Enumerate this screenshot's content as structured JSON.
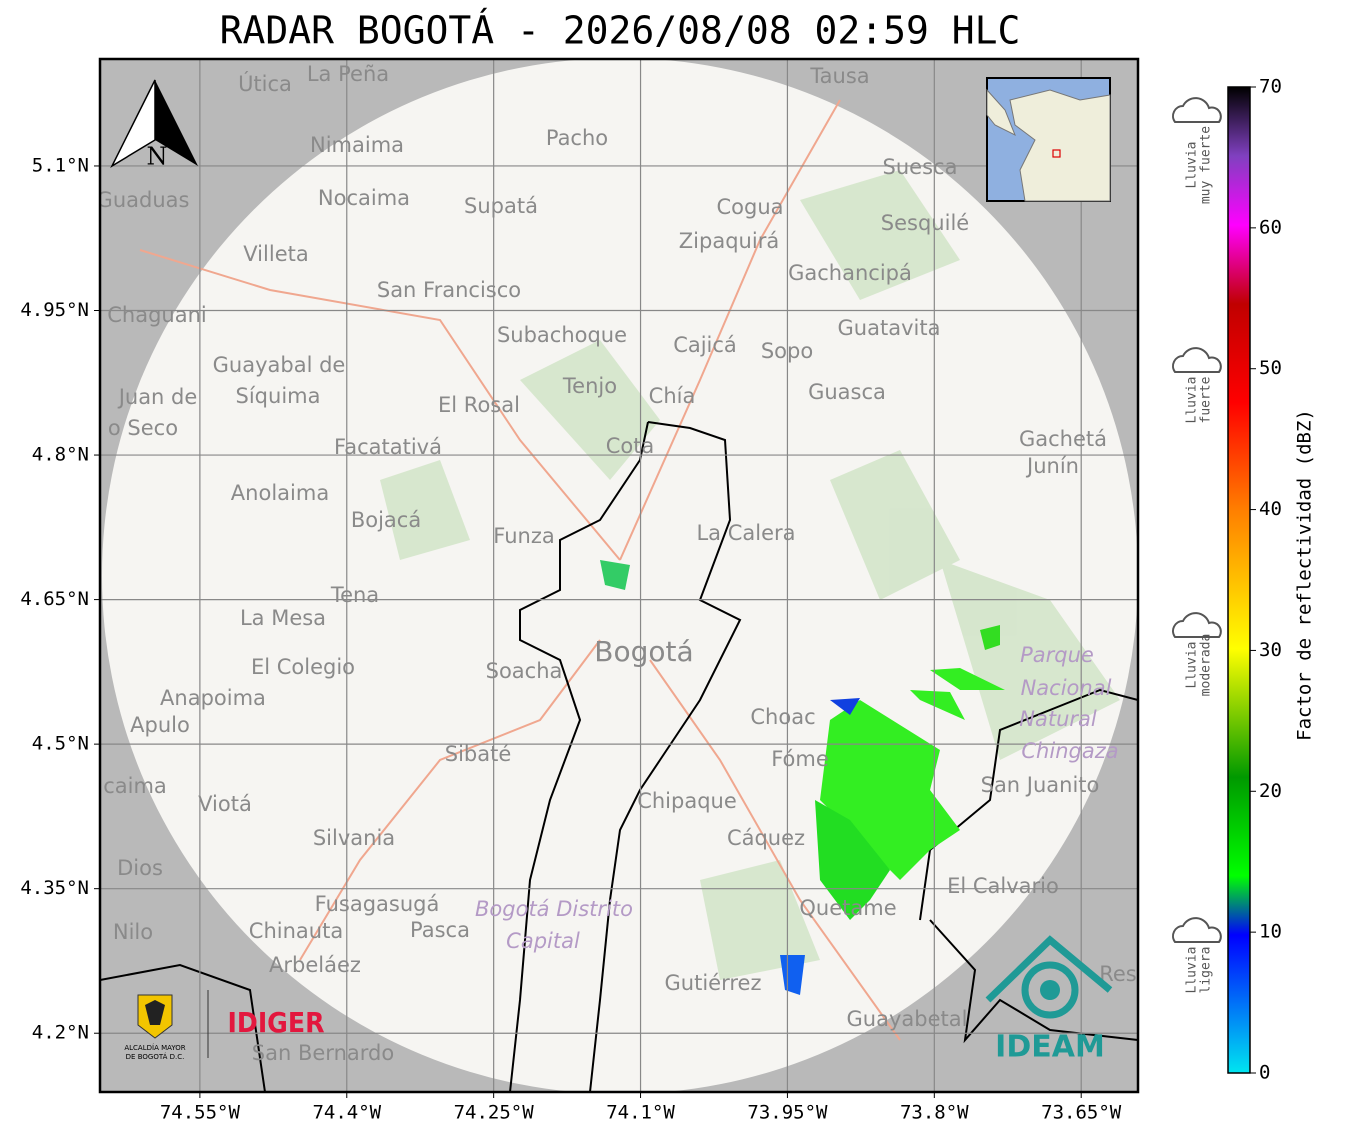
{
  "title": "RADAR BOGOTÁ - 2026/08/08 02:59 HLC",
  "map": {
    "lonlim": [
      -74.652,
      -73.592
    ],
    "latlim": [
      4.139,
      5.211
    ],
    "lon_ticks": [
      {
        "value": -74.55,
        "label": "74.55°W"
      },
      {
        "value": -74.4,
        "label": "74.4°W"
      },
      {
        "value": -74.25,
        "label": "74.25°W"
      },
      {
        "value": -74.1,
        "label": "74.1°W"
      },
      {
        "value": -73.95,
        "label": "73.95°W"
      },
      {
        "value": -73.8,
        "label": "73.8°W"
      },
      {
        "value": -73.65,
        "label": "73.65°W"
      }
    ],
    "lat_ticks": [
      {
        "value": 5.1,
        "label": "5.1°N"
      },
      {
        "value": 4.95,
        "label": "4.95°N"
      },
      {
        "value": 4.8,
        "label": "4.8°N"
      },
      {
        "value": 4.65,
        "label": "4.65°N"
      },
      {
        "value": 4.5,
        "label": "4.5°N"
      },
      {
        "value": 4.35,
        "label": "4.35°N"
      },
      {
        "value": 4.2,
        "label": "4.2°N"
      }
    ],
    "north": "N",
    "places": [
      "La Peña",
      "Útica",
      "Tausa",
      "Nimaima",
      "Pacho",
      "Suesca",
      "Guaduas",
      "Nocaima",
      "Supatá",
      "Cogua",
      "Sesquilé",
      "Zipaquirá",
      "Villeta",
      "Gachancipá",
      "San Francisco",
      "Chaguani",
      "Guatavita",
      "Subachoque",
      "Cajicá",
      "Sopo",
      "Guayabal de",
      "Síquima",
      "Tenjo",
      "Guasca",
      "Juan de",
      "El Rosal",
      "Chía",
      "o Seco",
      "Gachetá",
      "Junín",
      "Facatativá",
      "Cota",
      "Anolaima",
      "Bojacá",
      "Funza",
      "La Calera",
      "Tena",
      "La Mesa",
      "Bogotá",
      "Parque",
      "El Colegio",
      "Soacha",
      "Nacional",
      "Anapoima",
      "Apulo",
      "Natural",
      "Choac",
      "Chingaza",
      "Sibaté",
      "Fóme",
      "San Juanito",
      "caima",
      "Viotá",
      "Chipaque",
      "Cáquez",
      "Silvania",
      "Dios",
      "El Calvario",
      "Fusagasugá",
      "Bogotá Distrito",
      "Quetame",
      "Nilo",
      "Chinauta",
      "Pasca",
      "Capital",
      "Arbeláez",
      "Res",
      "Gutiérrez",
      "Guayabetal",
      "San Bernardo"
    ],
    "logos": {
      "alcaldia": [
        "ALCALDÍA MAYOR",
        "DE BOGOTÁ D.C."
      ],
      "idiger": "IDIGER",
      "ideam": "IDEAM"
    }
  },
  "colorbar": {
    "label": "Factor de reflectividad (dBZ)",
    "lim": [
      0,
      70
    ],
    "ticks": [
      0,
      10,
      20,
      30,
      40,
      50,
      60,
      70
    ]
  },
  "legend": [
    {
      "lines": [
        "Lluvia",
        "muy fuerte"
      ]
    },
    {
      "lines": [
        "Lluvia",
        "fuerte"
      ]
    },
    {
      "lines": [
        "Lluvia",
        "moderada"
      ]
    },
    {
      "lines": [
        "Lluvia",
        "ligera"
      ]
    }
  ]
}
